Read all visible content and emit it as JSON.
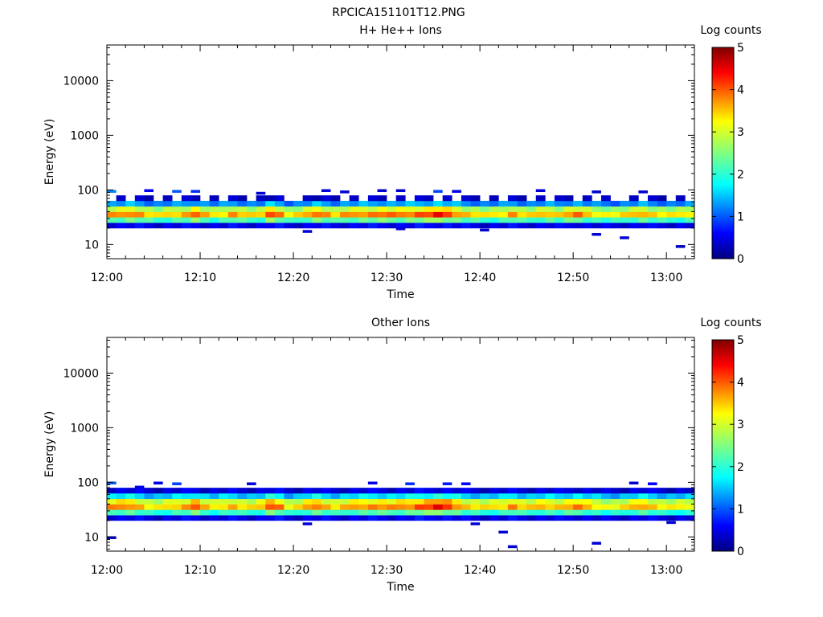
{
  "page_title": "RPCICA151101T12.PNG",
  "chart_data": [
    {
      "type": "heatmap",
      "title": "H+ He++ Ions",
      "xlabel": "Time",
      "ylabel": "Energy (eV)",
      "yscale": "log",
      "ylim": [
        5.5,
        45000
      ],
      "xlim_minutes": [
        0,
        63
      ],
      "x_ticks": [
        {
          "minutes": 0,
          "label": "12:00"
        },
        {
          "minutes": 10,
          "label": "12:10"
        },
        {
          "minutes": 20,
          "label": "12:20"
        },
        {
          "minutes": 30,
          "label": "12:30"
        },
        {
          "minutes": 40,
          "label": "12:40"
        },
        {
          "minutes": 50,
          "label": "12:50"
        },
        {
          "minutes": 60,
          "label": "13:00"
        }
      ],
      "y_ticks": [
        {
          "value": 10,
          "label": "10"
        },
        {
          "value": 100,
          "label": "100"
        },
        {
          "value": 1000,
          "label": "1000"
        },
        {
          "value": 10000,
          "label": "10000"
        }
      ],
      "colorbar": {
        "label": "Log counts",
        "min": 0,
        "max": 5,
        "ticks": [
          "0",
          "1",
          "2",
          "3",
          "4",
          "5"
        ]
      },
      "band": {
        "peak_log_counts": [
          3.8,
          3.9,
          4.1,
          3.9,
          3.6,
          3.4,
          3.6,
          3.7,
          3.8,
          4.2,
          3.7,
          3.5,
          3.6,
          3.9,
          3.7,
          3.5,
          3.6,
          4.4,
          4.0,
          3.4,
          3.5,
          3.8,
          4.2,
          3.9,
          3.6,
          3.8,
          3.9,
          4.0,
          4.0,
          4.1,
          4.0,
          4.0,
          4.1,
          4.2,
          4.3,
          4.5,
          4.3,
          4.0,
          3.7,
          3.6,
          3.4,
          3.5,
          3.6,
          3.9,
          3.6,
          3.5,
          3.7,
          3.8,
          3.6,
          3.9,
          4.0,
          3.7,
          3.5,
          3.4,
          3.4,
          3.5,
          3.7,
          3.9,
          3.6,
          3.5,
          3.4,
          3.5,
          3.6
        ],
        "center_eV": 36,
        "low_eV": 20,
        "high_eV": 75
      },
      "sparse_points": [
        {
          "minute": 0.5,
          "energy": 92,
          "log_counts": 1.2
        },
        {
          "minute": 4.5,
          "energy": 95,
          "log_counts": 0.6
        },
        {
          "minute": 7.5,
          "energy": 92,
          "log_counts": 1.0
        },
        {
          "minute": 9.5,
          "energy": 92,
          "log_counts": 0.8
        },
        {
          "minute": 16.5,
          "energy": 85,
          "log_counts": 0.4
        },
        {
          "minute": 23.5,
          "energy": 95,
          "log_counts": 0.4
        },
        {
          "minute": 25.5,
          "energy": 90,
          "log_counts": 0.4
        },
        {
          "minute": 29.5,
          "energy": 95,
          "log_counts": 0.4
        },
        {
          "minute": 31.5,
          "energy": 95,
          "log_counts": 0.4
        },
        {
          "minute": 35.5,
          "energy": 92,
          "log_counts": 0.9
        },
        {
          "minute": 37.5,
          "energy": 92,
          "log_counts": 0.5
        },
        {
          "minute": 46.5,
          "energy": 95,
          "log_counts": 0.4
        },
        {
          "minute": 52.5,
          "energy": 90,
          "log_counts": 0.4
        },
        {
          "minute": 57.5,
          "energy": 90,
          "log_counts": 0.4
        },
        {
          "minute": 52.5,
          "energy": 15,
          "log_counts": 0.4
        },
        {
          "minute": 55.5,
          "energy": 13,
          "log_counts": 0.4
        },
        {
          "minute": 61.5,
          "energy": 9,
          "log_counts": 0.3
        },
        {
          "minute": 21.5,
          "energy": 17,
          "log_counts": 0.4
        },
        {
          "minute": 31.5,
          "energy": 19,
          "log_counts": 0.4
        },
        {
          "minute": 40.5,
          "energy": 18,
          "log_counts": 0.4
        }
      ]
    },
    {
      "type": "heatmap",
      "title": "Other Ions",
      "xlabel": "Time",
      "ylabel": "Energy (eV)",
      "yscale": "log",
      "ylim": [
        5.5,
        45000
      ],
      "xlim_minutes": [
        0,
        63
      ],
      "x_ticks": [
        {
          "minutes": 0,
          "label": "12:00"
        },
        {
          "minutes": 10,
          "label": "12:10"
        },
        {
          "minutes": 20,
          "label": "12:20"
        },
        {
          "minutes": 30,
          "label": "12:30"
        },
        {
          "minutes": 40,
          "label": "12:40"
        },
        {
          "minutes": 50,
          "label": "12:50"
        },
        {
          "minutes": 60,
          "label": "13:00"
        }
      ],
      "y_ticks": [
        {
          "value": 10,
          "label": "10"
        },
        {
          "value": 100,
          "label": "100"
        },
        {
          "value": 1000,
          "label": "1000"
        },
        {
          "value": 10000,
          "label": "10000"
        }
      ],
      "colorbar": {
        "label": "Log counts",
        "min": 0,
        "max": 5,
        "ticks": [
          "0",
          "1",
          "2",
          "3",
          "4",
          "5"
        ]
      },
      "band": {
        "peak_log_counts": [
          3.9,
          4.0,
          4.1,
          3.8,
          3.5,
          3.4,
          3.6,
          3.8,
          3.9,
          4.3,
          3.7,
          3.5,
          3.7,
          3.8,
          3.6,
          3.5,
          3.7,
          4.4,
          4.1,
          3.4,
          3.5,
          3.9,
          4.2,
          3.8,
          3.6,
          3.7,
          3.9,
          4.0,
          4.0,
          4.0,
          3.9,
          4.0,
          4.1,
          4.3,
          4.4,
          4.6,
          4.4,
          4.1,
          3.7,
          3.6,
          3.5,
          3.6,
          3.7,
          4.0,
          3.7,
          3.6,
          3.8,
          3.8,
          3.7,
          3.9,
          4.0,
          3.8,
          3.6,
          3.4,
          3.4,
          3.5,
          3.8,
          4.0,
          3.7,
          3.5,
          3.4,
          3.5,
          3.5
        ],
        "center_eV": 37,
        "low_eV": 20,
        "high_eV": 80
      },
      "sparse_points": [
        {
          "minute": 0.5,
          "energy": 95,
          "log_counts": 1.0
        },
        {
          "minute": 3.5,
          "energy": 80,
          "log_counts": 0.5
        },
        {
          "minute": 5.5,
          "energy": 95,
          "log_counts": 0.5
        },
        {
          "minute": 7.5,
          "energy": 92,
          "log_counts": 0.9
        },
        {
          "minute": 15.5,
          "energy": 92,
          "log_counts": 0.4
        },
        {
          "minute": 28.5,
          "energy": 95,
          "log_counts": 0.5
        },
        {
          "minute": 32.5,
          "energy": 92,
          "log_counts": 0.8
        },
        {
          "minute": 36.5,
          "energy": 92,
          "log_counts": 0.7
        },
        {
          "minute": 38.5,
          "energy": 92,
          "log_counts": 0.6
        },
        {
          "minute": 56.5,
          "energy": 95,
          "log_counts": 0.4
        },
        {
          "minute": 58.5,
          "energy": 92,
          "log_counts": 0.6
        },
        {
          "minute": 0.5,
          "energy": 9.5,
          "log_counts": 0.4
        },
        {
          "minute": 42.5,
          "energy": 12,
          "log_counts": 0.4
        },
        {
          "minute": 43.5,
          "energy": 6.5,
          "log_counts": 0.4
        },
        {
          "minute": 52.5,
          "energy": 7.5,
          "log_counts": 0.4
        },
        {
          "minute": 21.5,
          "energy": 17,
          "log_counts": 0.4
        },
        {
          "minute": 39.5,
          "energy": 17,
          "log_counts": 0.4
        },
        {
          "minute": 60.5,
          "energy": 18,
          "log_counts": 0.4
        }
      ]
    }
  ]
}
